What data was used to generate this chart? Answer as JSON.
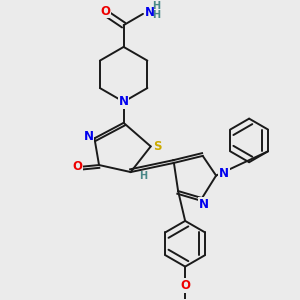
{
  "background_color": "#ebebeb",
  "bond_color": "#1a1a1a",
  "atom_colors": {
    "N": "#0000ee",
    "O": "#ee0000",
    "S": "#ccaa00",
    "H": "#4a8888",
    "C": "#1a1a1a"
  },
  "lw": 1.4,
  "fs": 8.5,
  "fs_small": 7.0
}
